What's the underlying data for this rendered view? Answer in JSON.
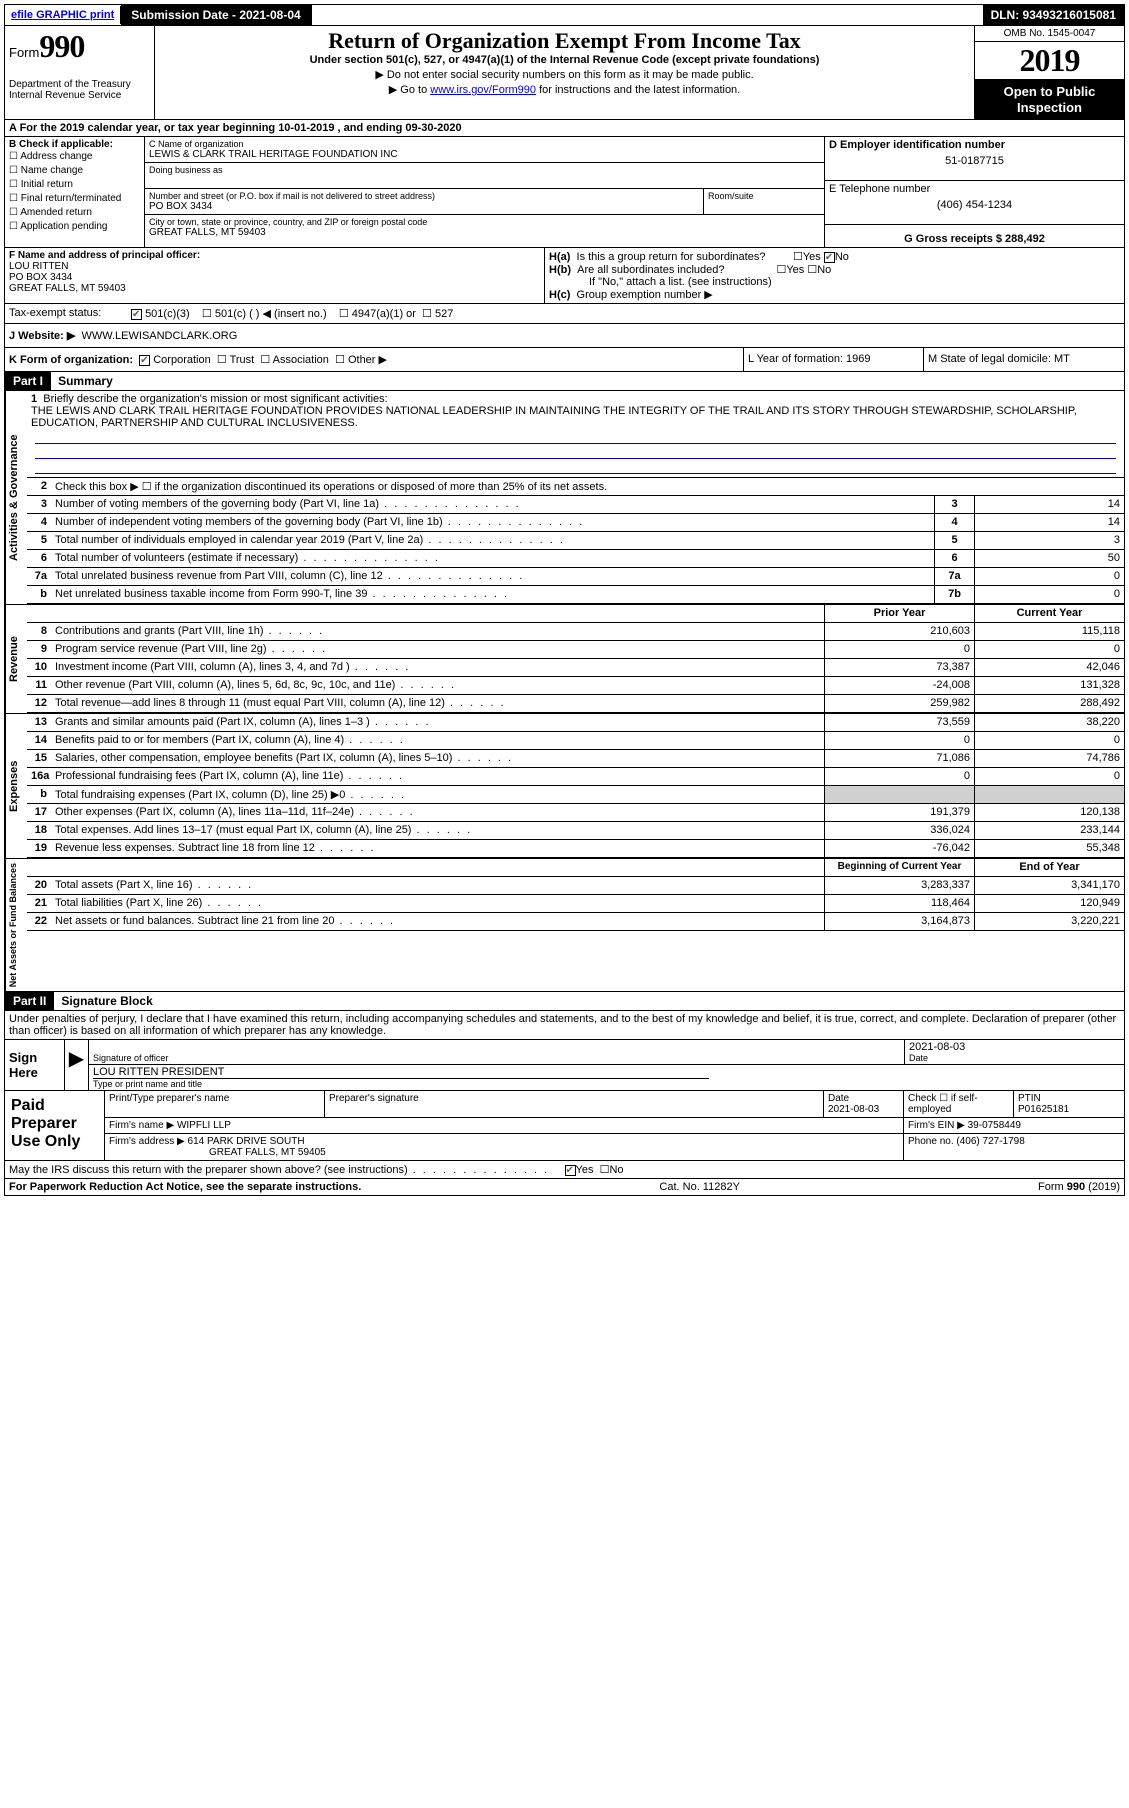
{
  "header_bar": {
    "efile": "efile GRAPHIC print",
    "submission_label": "Submission Date - 2021-08-04",
    "dln": "DLN: 93493216015081"
  },
  "top": {
    "form_word": "Form",
    "form_no": "990",
    "dept1": "Department of the Treasury",
    "dept2": "Internal Revenue Service",
    "title": "Return of Organization Exempt From Income Tax",
    "subtitle": "Under section 501(c), 527, or 4947(a)(1) of the Internal Revenue Code (except private foundations)",
    "line1": "▶ Do not enter social security numbers on this form as it may be made public.",
    "line2a": "▶ Go to ",
    "line2_link": "www.irs.gov/Form990",
    "line2b": " for instructions and the latest information.",
    "omb": "OMB No. 1545-0047",
    "year": "2019",
    "open": "Open to Public Inspection"
  },
  "row_a": "A For the 2019 calendar year, or tax year beginning 10-01-2019    , and ending 09-30-2020",
  "col_b": {
    "title": "B Check if applicable:",
    "items": [
      "Address change",
      "Name change",
      "Initial return",
      "Final return/terminated",
      "Amended return",
      "Application pending"
    ]
  },
  "col_c": {
    "name_lbl": "C Name of organization",
    "name": "LEWIS & CLARK TRAIL HERITAGE FOUNDATION INC",
    "dba_lbl": "Doing business as",
    "dba": "",
    "street_lbl": "Number and street (or P.O. box if mail is not delivered to street address)",
    "room_lbl": "Room/suite",
    "street": "PO BOX 3434",
    "city_lbl": "City or town, state or province, country, and ZIP or foreign postal code",
    "city": "GREAT FALLS, MT  59403"
  },
  "col_d": {
    "d_lbl": "D Employer identification number",
    "ein": "51-0187715",
    "e_lbl": "E Telephone number",
    "phone": "(406) 454-1234",
    "g_lbl": "G Gross receipts $ 288,492"
  },
  "fh": {
    "f_lbl": "F  Name and address of principal officer:",
    "f_name": "LOU RITTEN",
    "f_addr1": "PO BOX 3434",
    "f_addr2": "GREAT FALLS, MT  59403",
    "ha_lbl": "H(a)",
    "ha_text": "Is this a group return for subordinates?",
    "hb_lbl": "H(b)",
    "hb_text": "Are all subordinates included?",
    "hb_note": "If \"No,\" attach a list. (see instructions)",
    "hc_lbl": "H(c)",
    "hc_text": "Group exemption number ▶",
    "yes": "Yes",
    "no": "No"
  },
  "tax": {
    "label": "Tax-exempt status:",
    "opts": [
      "501(c)(3)",
      "501(c) (  ) ◀ (insert no.)",
      "4947(a)(1) or",
      "527"
    ]
  },
  "website": {
    "lbl": "J   Website: ▶",
    "val": "WWW.LEWISANDCLARK.ORG"
  },
  "korg": {
    "k": "K Form of organization:",
    "k_opts": [
      "Corporation",
      "Trust",
      "Association",
      "Other ▶"
    ],
    "l": "L Year of formation: 1969",
    "m": "M State of legal domicile: MT"
  },
  "part1": {
    "hdr": "Part I",
    "title": "Summary",
    "q1_lbl": "1",
    "q1": "Briefly describe the organization's mission or most significant activities:",
    "mission": "THE LEWIS AND CLARK TRAIL HERITAGE FOUNDATION PROVIDES NATIONAL LEADERSHIP IN MAINTAINING THE INTEGRITY OF THE TRAIL AND ITS STORY THROUGH STEWARDSHIP, SCHOLARSHIP, EDUCATION, PARTNERSHIP AND CULTURAL INCLUSIVENESS.",
    "q2": "Check this box ▶ ☐  if the organization discontinued its operations or disposed of more than 25% of its net assets.",
    "sections": {
      "gov": "Activities & Governance",
      "rev": "Revenue",
      "exp": "Expenses",
      "net": "Net Assets or Fund Balances"
    },
    "lines_gov": [
      {
        "n": "3",
        "t": "Number of voting members of the governing body (Part VI, line 1a)",
        "c": "3",
        "v": "14"
      },
      {
        "n": "4",
        "t": "Number of independent voting members of the governing body (Part VI, line 1b)",
        "c": "4",
        "v": "14"
      },
      {
        "n": "5",
        "t": "Total number of individuals employed in calendar year 2019 (Part V, line 2a)",
        "c": "5",
        "v": "3"
      },
      {
        "n": "6",
        "t": "Total number of volunteers (estimate if necessary)",
        "c": "6",
        "v": "50"
      },
      {
        "n": "7a",
        "t": "Total unrelated business revenue from Part VIII, column (C), line 12",
        "c": "7a",
        "v": "0"
      },
      {
        "n": "b",
        "t": "Net unrelated business taxable income from Form 990-T, line 39",
        "c": "7b",
        "v": "0"
      }
    ],
    "col_hdr": {
      "prior": "Prior Year",
      "current": "Current Year"
    },
    "lines_rev": [
      {
        "n": "8",
        "t": "Contributions and grants (Part VIII, line 1h)",
        "p": "210,603",
        "c": "115,118"
      },
      {
        "n": "9",
        "t": "Program service revenue (Part VIII, line 2g)",
        "p": "0",
        "c": "0"
      },
      {
        "n": "10",
        "t": "Investment income (Part VIII, column (A), lines 3, 4, and 7d )",
        "p": "73,387",
        "c": "42,046"
      },
      {
        "n": "11",
        "t": "Other revenue (Part VIII, column (A), lines 5, 6d, 8c, 9c, 10c, and 11e)",
        "p": "-24,008",
        "c": "131,328"
      },
      {
        "n": "12",
        "t": "Total revenue—add lines 8 through 11 (must equal Part VIII, column (A), line 12)",
        "p": "259,982",
        "c": "288,492"
      }
    ],
    "lines_exp": [
      {
        "n": "13",
        "t": "Grants and similar amounts paid (Part IX, column (A), lines 1–3 )",
        "p": "73,559",
        "c": "38,220"
      },
      {
        "n": "14",
        "t": "Benefits paid to or for members (Part IX, column (A), line 4)",
        "p": "0",
        "c": "0"
      },
      {
        "n": "15",
        "t": "Salaries, other compensation, employee benefits (Part IX, column (A), lines 5–10)",
        "p": "71,086",
        "c": "74,786"
      },
      {
        "n": "16a",
        "t": "Professional fundraising fees (Part IX, column (A), line 11e)",
        "p": "0",
        "c": "0"
      },
      {
        "n": "b",
        "t": "Total fundraising expenses (Part IX, column (D), line 25) ▶0",
        "p": "",
        "c": "",
        "grey": true
      },
      {
        "n": "17",
        "t": "Other expenses (Part IX, column (A), lines 11a–11d, 11f–24e)",
        "p": "191,379",
        "c": "120,138"
      },
      {
        "n": "18",
        "t": "Total expenses. Add lines 13–17 (must equal Part IX, column (A), line 25)",
        "p": "336,024",
        "c": "233,144"
      },
      {
        "n": "19",
        "t": "Revenue less expenses. Subtract line 18 from line 12",
        "p": "-76,042",
        "c": "55,348"
      }
    ],
    "net_hdr": {
      "begin": "Beginning of Current Year",
      "end": "End of Year"
    },
    "lines_net": [
      {
        "n": "20",
        "t": "Total assets (Part X, line 16)",
        "p": "3,283,337",
        "c": "3,341,170"
      },
      {
        "n": "21",
        "t": "Total liabilities (Part X, line 26)",
        "p": "118,464",
        "c": "120,949"
      },
      {
        "n": "22",
        "t": "Net assets or fund balances. Subtract line 21 from line 20",
        "p": "3,164,873",
        "c": "3,220,221"
      }
    ]
  },
  "part2": {
    "hdr": "Part II",
    "title": "Signature Block",
    "decl": "Under penalties of perjury, I declare that I have examined this return, including accompanying schedules and statements, and to the best of my knowledge and belief, it is true, correct, and complete. Declaration of preparer (other than officer) is based on all information of which preparer has any knowledge.",
    "sign_here": "Sign Here",
    "sig_officer": "Signature of officer",
    "date_lbl": "Date",
    "date": "2021-08-03",
    "name_title": "LOU RITTEN  PRESIDENT",
    "type_name": "Type or print name and title",
    "paid": "Paid Preparer Use Only",
    "prep_name_lbl": "Print/Type preparer's name",
    "prep_sig_lbl": "Preparer's signature",
    "prep_date_lbl": "Date",
    "prep_date": "2021-08-03",
    "check_self": "Check ☐ if self-employed",
    "ptin_lbl": "PTIN",
    "ptin": "P01625181",
    "firm_name_lbl": "Firm's name    ▶",
    "firm_name": "WIPFLI LLP",
    "firm_ein_lbl": "Firm's EIN ▶",
    "firm_ein": "39-0758449",
    "firm_addr_lbl": "Firm's address ▶",
    "firm_addr1": "614 PARK DRIVE SOUTH",
    "firm_addr2": "GREAT FALLS, MT  59405",
    "phone_lbl": "Phone no.",
    "phone": "(406) 727-1798",
    "discuss": "May the IRS discuss this return with the preparer shown above? (see instructions)",
    "yes": "Yes",
    "no": "No"
  },
  "footer": {
    "left": "For Paperwork Reduction Act Notice, see the separate instructions.",
    "mid": "Cat. No. 11282Y",
    "right": "Form 990 (2019)"
  }
}
